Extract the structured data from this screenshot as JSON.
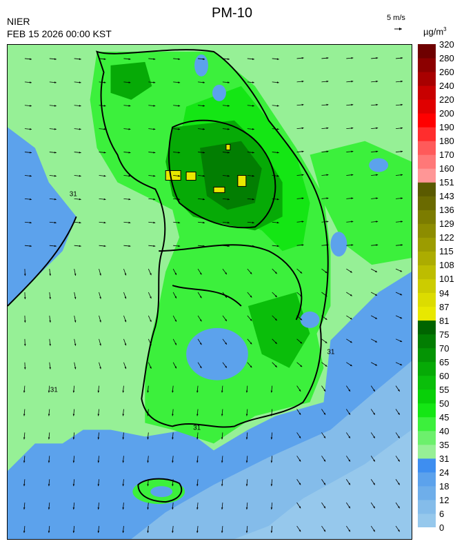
{
  "header": {
    "title": "PM-10",
    "agency": "NIER",
    "datetime": "FEB 15 2026 00:00 KST",
    "wind_reference": "5 m/s",
    "unit_base": "µg/m",
    "unit_sup": "3"
  },
  "legend": {
    "labels": [
      "0",
      "6",
      "12",
      "18",
      "24",
      "31",
      "35",
      "40",
      "45",
      "50",
      "55",
      "60",
      "65",
      "70",
      "75",
      "81",
      "87",
      "94",
      "101",
      "108",
      "115",
      "122",
      "129",
      "136",
      "143",
      "151",
      "160",
      "170",
      "180",
      "190",
      "200",
      "220",
      "240",
      "260",
      "280",
      "320"
    ],
    "colors": [
      "#96c8ec",
      "#84bcea",
      "#6eaeea",
      "#5ca2ec",
      "#3e8ef0",
      "#96f096",
      "#6cf06c",
      "#3cf03c",
      "#14e614",
      "#08d008",
      "#0abe0a",
      "#06aa06",
      "#049404",
      "#027e02",
      "#006400",
      "#e8e800",
      "#dcdc00",
      "#cccc00",
      "#bdbd00",
      "#acac00",
      "#9c9c00",
      "#8c8c00",
      "#7c7c00",
      "#6a6a00",
      "#5a5a00",
      "#ff9696",
      "#ff7878",
      "#ff5a5a",
      "#ff2d2d",
      "#ff0000",
      "#e00000",
      "#c80000",
      "#a80000",
      "#8c0000",
      "#6e0000"
    ]
  },
  "map": {
    "contour_labels": [
      "31",
      "31",
      "31",
      "31"
    ]
  }
}
